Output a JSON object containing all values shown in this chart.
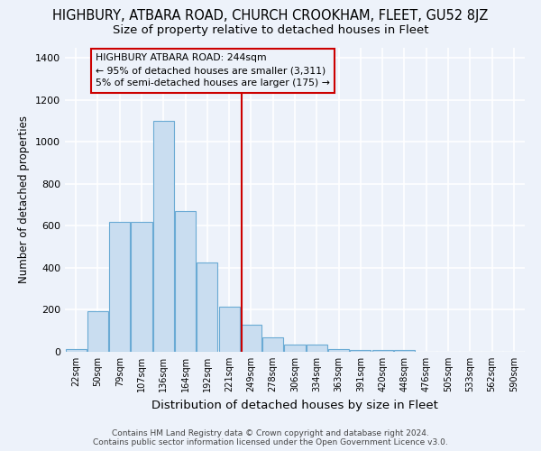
{
  "title": "HIGHBURY, ATBARA ROAD, CHURCH CROOKHAM, FLEET, GU52 8JZ",
  "subtitle": "Size of property relative to detached houses in Fleet",
  "xlabel": "Distribution of detached houses by size in Fleet",
  "ylabel": "Number of detached properties",
  "bar_labels": [
    "22sqm",
    "50sqm",
    "79sqm",
    "107sqm",
    "136sqm",
    "164sqm",
    "192sqm",
    "221sqm",
    "249sqm",
    "278sqm",
    "306sqm",
    "334sqm",
    "363sqm",
    "391sqm",
    "420sqm",
    "448sqm",
    "476sqm",
    "505sqm",
    "533sqm",
    "562sqm",
    "590sqm"
  ],
  "bar_values": [
    15,
    195,
    617,
    617,
    1100,
    672,
    427,
    213,
    128,
    68,
    33,
    33,
    15,
    10,
    10,
    10,
    0,
    0,
    0,
    0,
    0
  ],
  "bar_color": "#c9ddf0",
  "bar_edge_color": "#6aaad4",
  "vline_color": "#cc0000",
  "annotation_title": "HIGHBURY ATBARA ROAD: 244sqm",
  "annotation_line1": "← 95% of detached houses are smaller (3,311)",
  "annotation_line2": "5% of semi-detached houses are larger (175) →",
  "annotation_box_edge": "#cc0000",
  "footer1": "Contains HM Land Registry data © Crown copyright and database right 2024.",
  "footer2": "Contains public sector information licensed under the Open Government Licence v3.0.",
  "ylim": [
    0,
    1450
  ],
  "background_color": "#edf2fa",
  "grid_color": "#ffffff",
  "title_fontsize": 10.5,
  "subtitle_fontsize": 9.5,
  "ylabel_fontsize": 8.5,
  "xlabel_fontsize": 9.5
}
